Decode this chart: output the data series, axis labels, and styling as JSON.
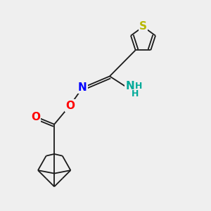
{
  "background_color": "#efefef",
  "atoms": {
    "S": {
      "color": "#b8b800",
      "fontsize": 11
    },
    "O": {
      "color": "#ff0000",
      "fontsize": 11
    },
    "N": {
      "color": "#0000ff",
      "fontsize": 11
    },
    "NH": {
      "color": "#00aa99",
      "fontsize": 11
    },
    "H_small": {
      "color": "#00aa99",
      "fontsize": 9
    }
  },
  "bonds_color": "#1a1a1a",
  "bond_lw": 1.3
}
